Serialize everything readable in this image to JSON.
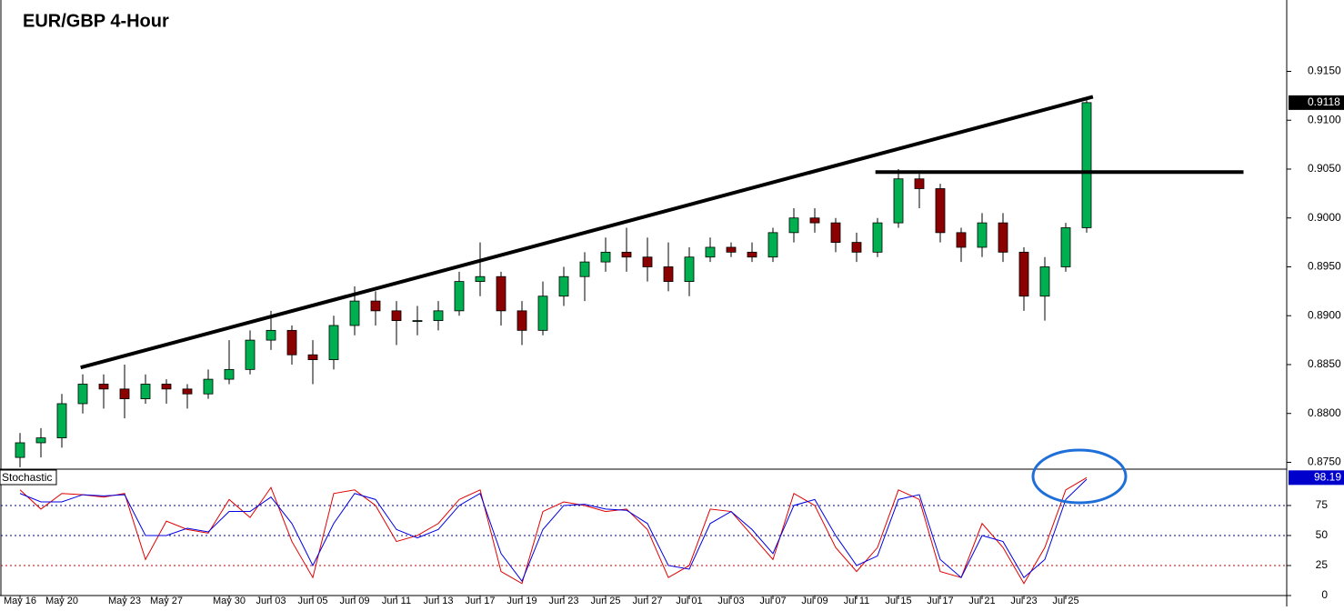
{
  "chart_data": [
    {
      "type": "candlestick",
      "title": "EUR/GBP 4-Hour",
      "categories": [
        "May 16",
        null,
        "May 20",
        null,
        null,
        "May 23",
        null,
        "May 27",
        null,
        null,
        "May 30",
        null,
        "Jun 03",
        null,
        "Jun 05",
        null,
        "Jun 09",
        null,
        "Jun 11",
        null,
        "Jun 13",
        null,
        "Jun 17",
        null,
        "Jun 19",
        null,
        "Jun 23",
        null,
        "Jun 25",
        null,
        "Jun 27",
        null,
        "Jul 01",
        null,
        "Jul 03",
        null,
        "Jul 07",
        null,
        "Jul 09",
        null,
        "Jul 11",
        null,
        "Jul 15",
        null,
        "Jul 17",
        null,
        "Jul 21",
        null,
        "Jul 23",
        null,
        "Jul 25",
        null
      ],
      "open": [
        0.8755,
        0.877,
        0.8775,
        0.881,
        0.883,
        0.8825,
        0.8815,
        0.883,
        0.8825,
        0.882,
        0.8835,
        0.8845,
        0.8875,
        0.8885,
        0.886,
        0.8855,
        0.889,
        0.8915,
        0.8905,
        0.8895,
        0.8895,
        0.8905,
        0.8935,
        0.894,
        0.8905,
        0.8885,
        0.892,
        0.894,
        0.8955,
        0.8965,
        0.896,
        0.895,
        0.8935,
        0.896,
        0.897,
        0.8965,
        0.896,
        0.8985,
        0.9,
        0.8995,
        0.8975,
        0.8965,
        0.8995,
        0.904,
        0.903,
        0.8985,
        0.897,
        0.8995,
        0.8965,
        0.892,
        0.895,
        0.899
      ],
      "high": [
        0.878,
        0.8785,
        0.882,
        0.884,
        0.884,
        0.885,
        0.884,
        0.8835,
        0.883,
        0.8845,
        0.8875,
        0.8885,
        0.8905,
        0.889,
        0.8875,
        0.89,
        0.893,
        0.8925,
        0.8915,
        0.891,
        0.8915,
        0.8945,
        0.8975,
        0.8945,
        0.8915,
        0.8935,
        0.895,
        0.8965,
        0.898,
        0.899,
        0.898,
        0.8975,
        0.897,
        0.898,
        0.8975,
        0.8975,
        0.899,
        0.901,
        0.901,
        0.9,
        0.8985,
        0.9,
        0.905,
        0.9045,
        0.9035,
        0.899,
        0.9005,
        0.9005,
        0.897,
        0.896,
        0.8995,
        0.9122
      ],
      "low": [
        0.8745,
        0.8755,
        0.8765,
        0.88,
        0.8805,
        0.8795,
        0.881,
        0.881,
        0.8805,
        0.8815,
        0.883,
        0.884,
        0.8865,
        0.885,
        0.883,
        0.8845,
        0.888,
        0.889,
        0.887,
        0.888,
        0.8885,
        0.89,
        0.892,
        0.889,
        0.887,
        0.888,
        0.891,
        0.8915,
        0.8945,
        0.8945,
        0.8935,
        0.8925,
        0.892,
        0.8955,
        0.896,
        0.8955,
        0.8955,
        0.8975,
        0.8985,
        0.8965,
        0.8955,
        0.896,
        0.899,
        0.901,
        0.8975,
        0.8955,
        0.896,
        0.8955,
        0.8905,
        0.8895,
        0.8945,
        0.8985
      ],
      "close": [
        0.877,
        0.8775,
        0.881,
        0.883,
        0.8825,
        0.8815,
        0.883,
        0.8825,
        0.882,
        0.8835,
        0.8845,
        0.8875,
        0.8885,
        0.886,
        0.8855,
        0.889,
        0.8915,
        0.8905,
        0.8895,
        0.8895,
        0.8905,
        0.8935,
        0.894,
        0.8905,
        0.8885,
        0.892,
        0.894,
        0.8955,
        0.8965,
        0.896,
        0.895,
        0.8935,
        0.896,
        0.897,
        0.8965,
        0.896,
        0.8985,
        0.9,
        0.8995,
        0.8975,
        0.8965,
        0.8995,
        0.904,
        0.903,
        0.8985,
        0.897,
        0.8995,
        0.8965,
        0.892,
        0.895,
        0.899,
        0.9118
      ],
      "up_color": "#00b050",
      "down_color": "#8b0000",
      "ylim": [
        0.8743,
        0.9223
      ],
      "yticks": [
        {
          "value": 0.875,
          "label": "0.8750"
        },
        {
          "value": 0.88,
          "label": "0.8800"
        },
        {
          "value": 0.885,
          "label": "0.8850"
        },
        {
          "value": 0.89,
          "label": "0.8900"
        },
        {
          "value": 0.895,
          "label": "0.8950"
        },
        {
          "value": 0.9,
          "label": "0.9000"
        },
        {
          "value": 0.905,
          "label": "0.9050"
        },
        {
          "value": 0.91,
          "label": "0.9100"
        },
        {
          "value": 0.915,
          "label": "0.9150"
        }
      ],
      "lines": [
        {
          "x": [
            2.9,
            51.3
          ],
          "y": [
            0.8847,
            0.9124
          ]
        },
        {
          "x": [
            40.9,
            58.5
          ],
          "y": [
            0.9047,
            0.9047
          ]
        }
      ]
    },
    {
      "type": "line",
      "title": "Stochastic",
      "series": [
        {
          "color": "#e00000",
          "values": [
            88,
            72,
            85,
            84,
            82,
            85,
            30,
            62,
            55,
            52,
            80,
            65,
            90,
            45,
            15,
            85,
            88,
            75,
            45,
            50,
            60,
            80,
            88,
            20,
            10,
            70,
            78,
            75,
            70,
            72,
            55,
            15,
            25,
            72,
            70,
            50,
            30,
            85,
            75,
            40,
            20,
            40,
            88,
            80,
            20,
            15,
            60,
            40,
            10,
            40,
            88,
            98.19
          ]
        },
        {
          "color": "#0000e0",
          "values": [
            85,
            78,
            78,
            84,
            83,
            84,
            50,
            50,
            56,
            53,
            70,
            70,
            82,
            60,
            25,
            60,
            85,
            80,
            55,
            48,
            55,
            75,
            85,
            35,
            12,
            55,
            75,
            76,
            72,
            71,
            60,
            25,
            22,
            60,
            70,
            55,
            35,
            75,
            80,
            50,
            25,
            33,
            80,
            84,
            30,
            15,
            50,
            45,
            15,
            30,
            80,
            96.8
          ]
        }
      ],
      "ylim": [
        0,
        104.5
      ],
      "yticks": [
        0,
        25,
        50,
        75
      ],
      "levels": [
        25,
        50,
        75
      ],
      "level_colors": [
        "#c00000",
        "#000080",
        "#000080"
      ]
    }
  ]
}
